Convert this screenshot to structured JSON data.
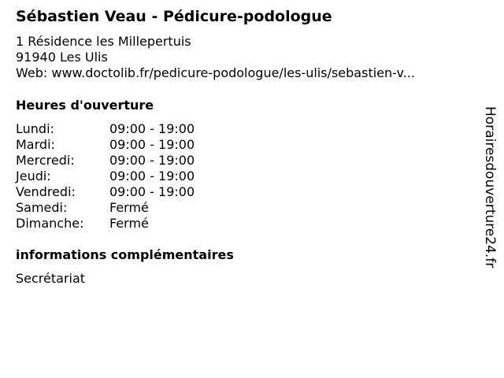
{
  "title": "Sébastien Veau - Pédicure-podologue",
  "address": {
    "street": "1 Résidence les Millepertuis",
    "city": "91940 Les Ulis",
    "web": "Web: www.doctolib.fr/pedicure-podologue/les-ulis/sebastien-v..."
  },
  "hours_heading": "Heures d'ouverture",
  "hours": [
    {
      "day": "Lundi:",
      "time": "09:00 - 19:00"
    },
    {
      "day": "Mardi:",
      "time": "09:00 - 19:00"
    },
    {
      "day": "Mercredi:",
      "time": "09:00 - 19:00"
    },
    {
      "day": "Jeudi:",
      "time": "09:00 - 19:00"
    },
    {
      "day": "Vendredi:",
      "time": "09:00 - 19:00"
    },
    {
      "day": "Samedi:",
      "time": "Fermé"
    },
    {
      "day": "Dimanche:",
      "time": "Fermé"
    }
  ],
  "info_heading": "informations complémentaires",
  "info_text": "Secrétariat",
  "watermark": "Horairesdouverture24.fr"
}
